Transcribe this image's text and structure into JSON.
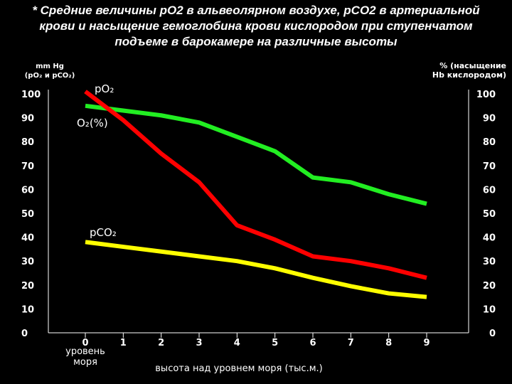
{
  "title_lines": [
    "* Средние величины рО2 в альвеолярном воздухе, рСО2 в артериальной",
    "крови и насыщение гемоглобина крови кислородом при ступенчатом",
    "подъеме в барокамере на различные высоты"
  ],
  "chart_data": {
    "type": "line",
    "left_axis_label": [
      "mm Hg",
      "(pO₂ и pCO₂)"
    ],
    "right_axis_label": [
      "% (насыщение",
      "Hb кислородом)"
    ],
    "xlabel": "высота над уровнем моря (тыс.м.)",
    "x_ticks": [
      "0",
      "1",
      "2",
      "3",
      "4",
      "5",
      "6",
      "7",
      "8",
      "9"
    ],
    "x_sublabel": [
      "уровень",
      "моря"
    ],
    "y_ticks": [
      "0",
      "10",
      "20",
      "30",
      "40",
      "50",
      "60",
      "70",
      "80",
      "90",
      "100"
    ],
    "ylim": [
      0,
      100
    ],
    "xlim": [
      0,
      9
    ],
    "grid": false,
    "series": [
      {
        "name": "pO2",
        "label": "pO₂",
        "color": "#ff0000",
        "x": [
          0,
          1,
          2,
          3,
          4,
          5,
          6,
          7,
          8,
          9
        ],
        "y": [
          101,
          89,
          75,
          63,
          45,
          39,
          32,
          30,
          27,
          23
        ]
      },
      {
        "name": "O2(%)",
        "label": "O₂(%)",
        "color": "#22ee22",
        "x": [
          0,
          1,
          2,
          3,
          4,
          5,
          6,
          7,
          8,
          9
        ],
        "y": [
          95,
          93,
          91,
          88,
          82,
          76,
          65,
          63,
          58,
          54
        ]
      },
      {
        "name": "pCO2",
        "label": "pCO₂",
        "color": "#ffff00",
        "x": [
          0,
          1,
          2,
          3,
          4,
          5,
          6,
          7,
          8,
          9
        ],
        "y": [
          38,
          36,
          34,
          32,
          30,
          27,
          23,
          19.5,
          16.5,
          15
        ]
      }
    ]
  }
}
